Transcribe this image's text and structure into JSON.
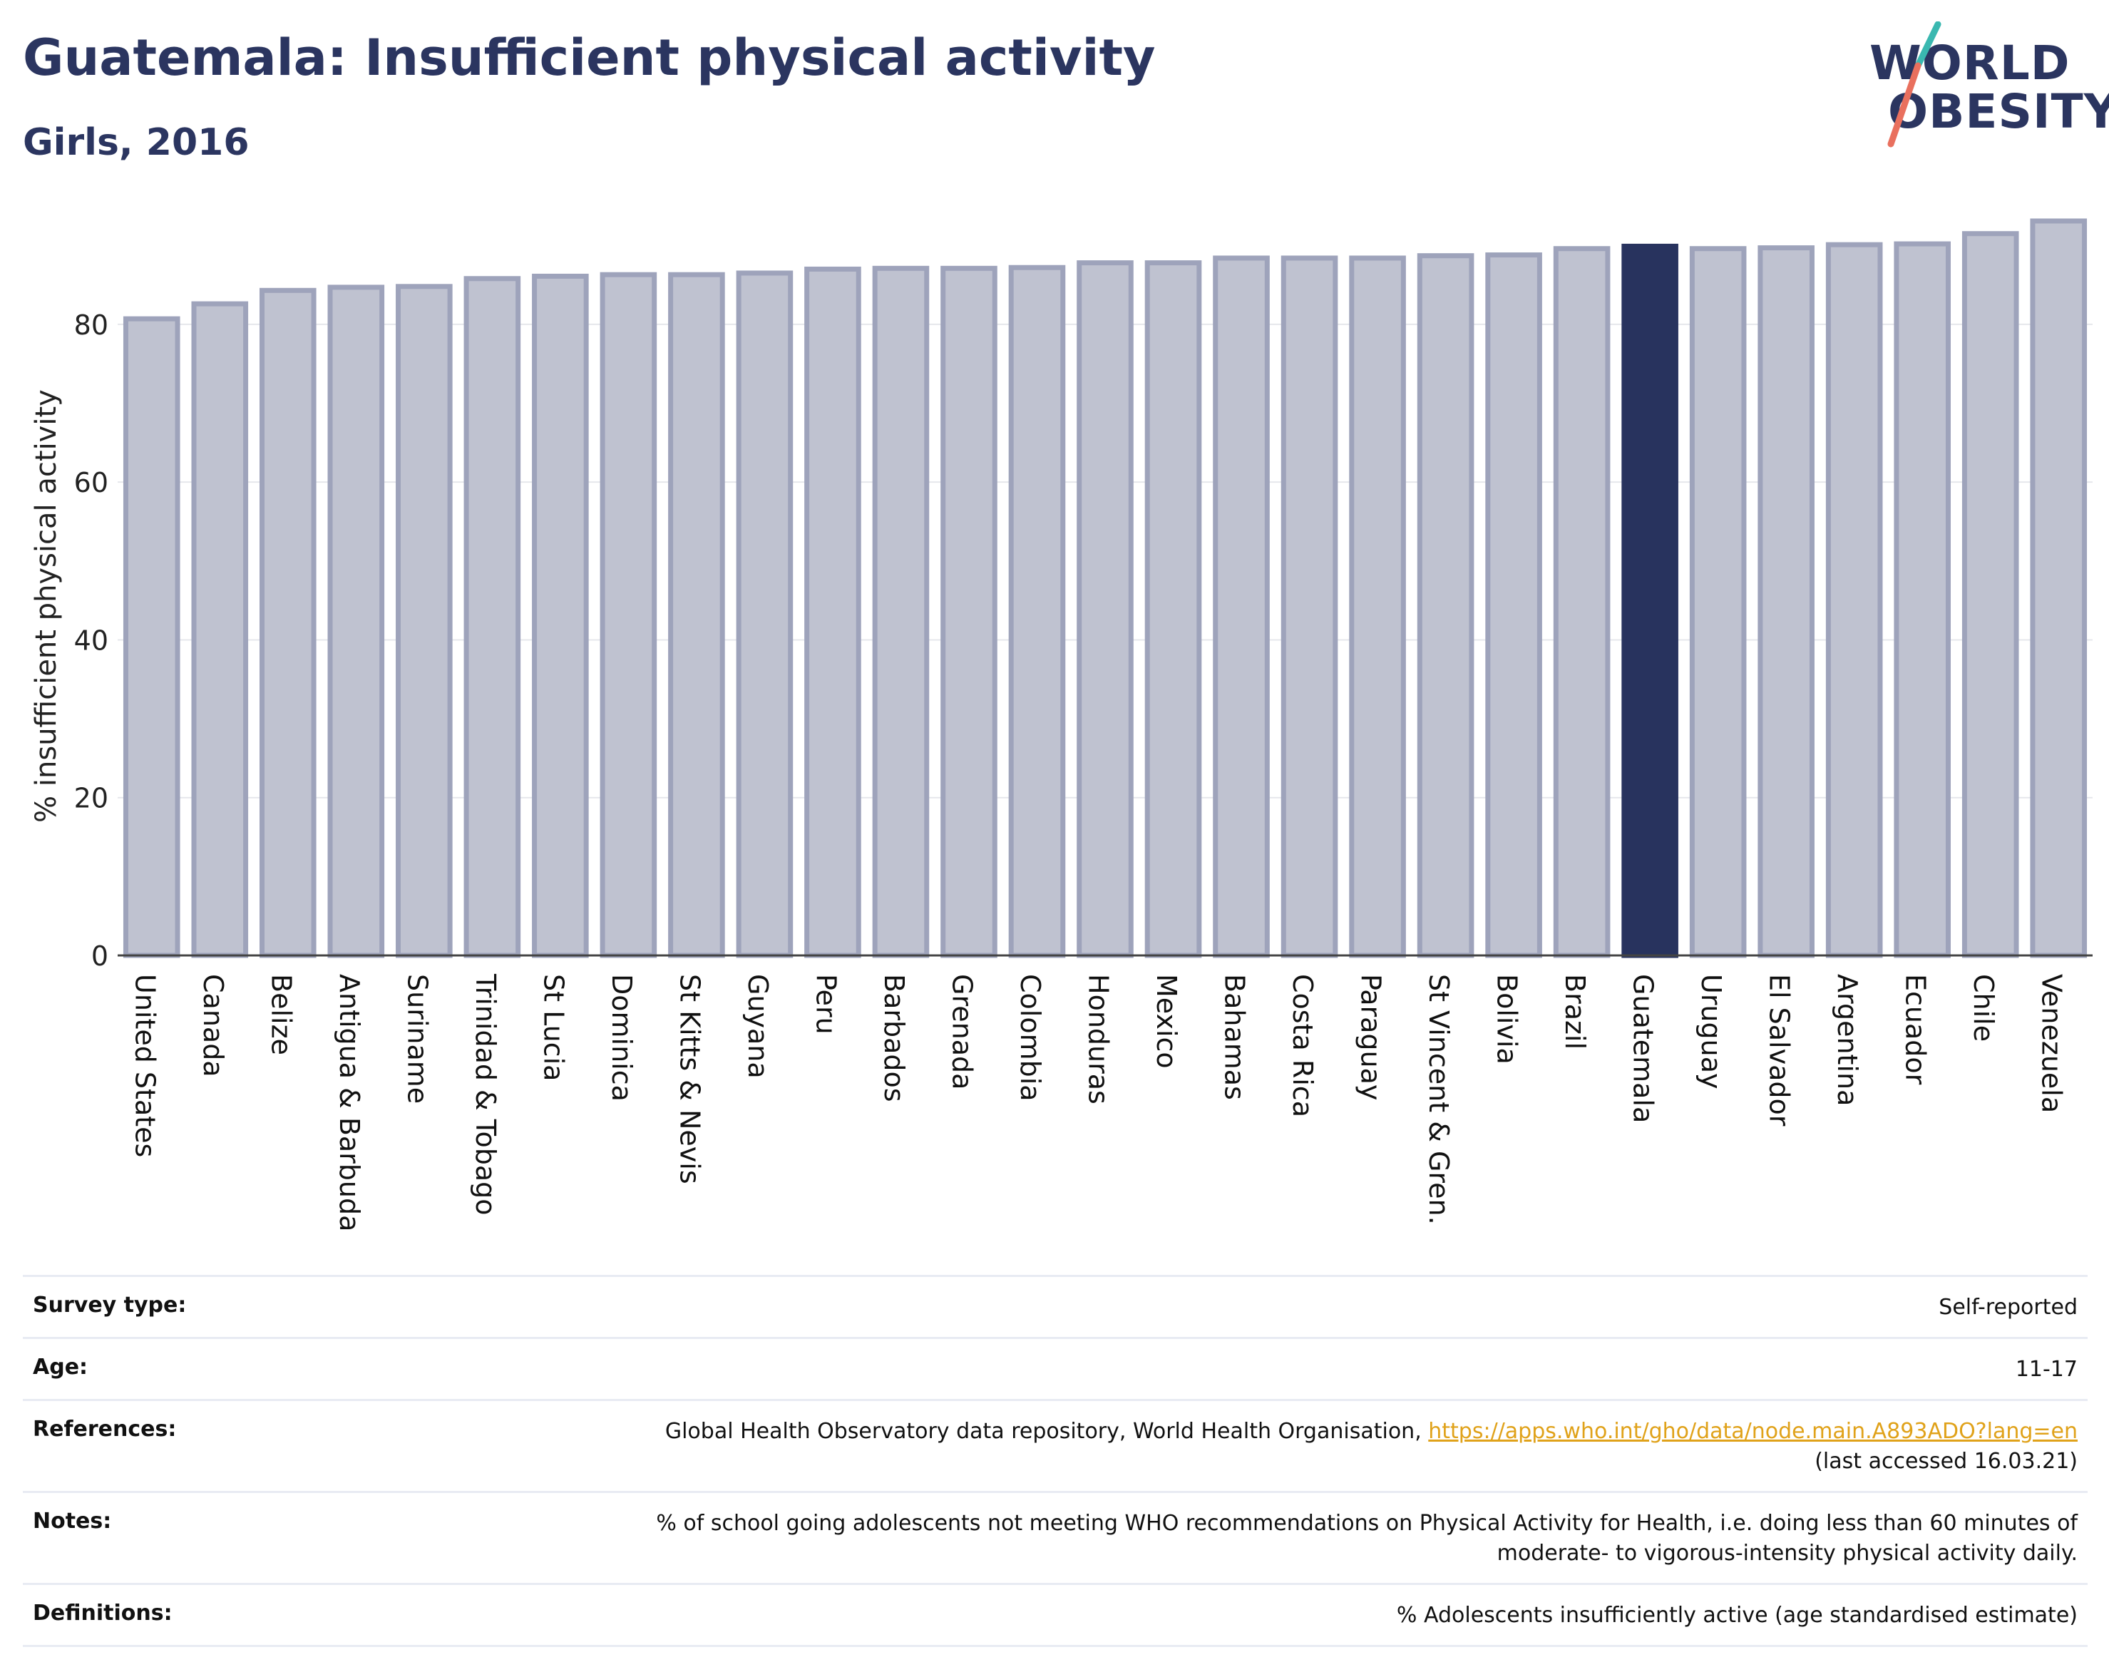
{
  "header": {
    "title": "Guatemala: Insufficient physical activity",
    "subtitle": "Girls, 2016"
  },
  "logo": {
    "line1": "WORLD",
    "line2": "OBESITY",
    "colors": {
      "text": "#2b3560",
      "accent_teal": "#3ab8b0",
      "accent_coral": "#e9705e"
    }
  },
  "colors": {
    "bar_fill": "#bfc2d0",
    "bar_border": "#9ea3bb",
    "highlight_bar": "#28335e",
    "axis_line": "#444444",
    "gridline": "#e6e7ec"
  },
  "chart_data": {
    "type": "bar",
    "title": "Guatemala: Insufficient physical activity",
    "subtitle": "Girls, 2016",
    "xlabel": "",
    "ylabel": "% insufficient physical activity",
    "ylim": [
      0,
      94
    ],
    "yticks": [
      0,
      20,
      40,
      60,
      80
    ],
    "grid": true,
    "highlight": "Guatemala",
    "categories": [
      "United States",
      "Canada",
      "Belize",
      "Antigua & Barbuda",
      "Suriname",
      "Trinidad & Tobago",
      "St Lucia",
      "Dominica",
      "St Kitts & Nevis",
      "Guyana",
      "Peru",
      "Barbados",
      "Grenada",
      "Colombia",
      "Honduras",
      "Mexico",
      "Bahamas",
      "Costa Rica",
      "Paraguay",
      "St Vincent & Gren.",
      "Bolivia",
      "Brazil",
      "Guatemala",
      "Uruguay",
      "El Salvador",
      "Argentina",
      "Ecuador",
      "Chile",
      "Venezuela"
    ],
    "values": [
      80.7,
      82.6,
      84.3,
      84.7,
      84.8,
      85.8,
      86.1,
      86.3,
      86.3,
      86.5,
      87.0,
      87.1,
      87.1,
      87.2,
      87.8,
      87.8,
      88.4,
      88.4,
      88.4,
      88.7,
      88.8,
      89.6,
      89.9,
      89.6,
      89.7,
      90.1,
      90.2,
      91.5,
      93.1
    ]
  },
  "meta": {
    "survey_type_label": "Survey type:",
    "survey_type_value": "Self-reported",
    "age_label": "Age:",
    "age_value": "11-17",
    "references_label": "References:",
    "references_text": "Global Health Observatory data repository, World Health Organisation, ",
    "references_link": "https://apps.who.int/gho/data/node.main.A893ADO?lang=en",
    "references_accessed": "(last accessed 16.03.21)",
    "notes_label": "Notes:",
    "notes_line1": "% of school going adolescents not meeting WHO recommendations on Physical Activity for Health, i.e. doing less than 60 minutes of",
    "notes_line2": "moderate- to vigorous-intensity physical activity daily.",
    "definitions_label": "Definitions:",
    "definitions_value": "% Adolescents insufficiently active (age standardised estimate)"
  }
}
